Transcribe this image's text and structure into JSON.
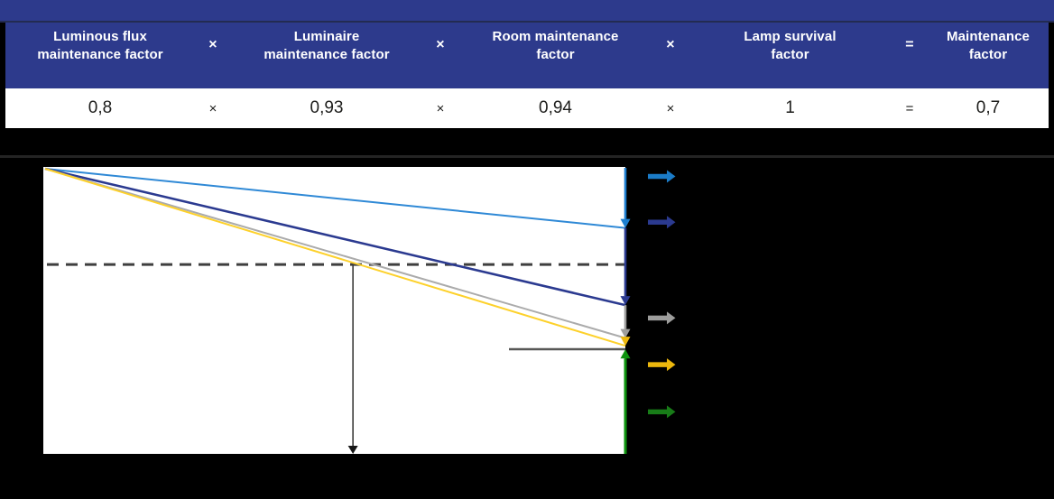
{
  "theme": {
    "page_bg": "#000000",
    "header_bg": "#2d3a8c",
    "header_text": "#ffffff",
    "value_text": "#1d1d1b",
    "section_divider": "#242424"
  },
  "table": {
    "cells": [
      {
        "type": "factor",
        "header": "Luminous flux\nmaintenance factor",
        "value": "0,8"
      },
      {
        "type": "operator",
        "header": "×",
        "value": "×"
      },
      {
        "type": "factor",
        "header": "Luminaire\nmaintenance factor",
        "value": "0,93"
      },
      {
        "type": "operator",
        "header": "×",
        "value": "×"
      },
      {
        "type": "factor",
        "header": "Room maintenance\nfactor",
        "value": "0,94"
      },
      {
        "type": "operator",
        "header": "×",
        "value": "×"
      },
      {
        "type": "factor",
        "header": "Lamp survival\nfactor",
        "value": "1"
      },
      {
        "type": "operator",
        "header": "=",
        "value": "="
      },
      {
        "type": "factor",
        "header": "Maintenance\nfactor",
        "value": "0,7"
      }
    ]
  },
  "chart_data": {
    "type": "line",
    "title": "",
    "xlabel": "",
    "ylabel": "",
    "x_range": [
      0,
      1
    ],
    "y_range": [
      0,
      1
    ],
    "grid": false,
    "plot_bg": "#ffffff",
    "series": [
      {
        "name": "luminous-flux-depreciation",
        "color": "#2f89d6",
        "width": 2,
        "x": [
          0,
          1
        ],
        "y": [
          1.0,
          0.79
        ]
      },
      {
        "name": "with-luminaire-depreciation",
        "color": "#2b3a90",
        "width": 2.6,
        "x": [
          0,
          1
        ],
        "y": [
          1.0,
          0.52
        ]
      },
      {
        "name": "with-room-surface-depreciation",
        "color": "#ababab",
        "width": 2,
        "x": [
          0,
          1
        ],
        "y": [
          1.0,
          0.405
        ]
      },
      {
        "name": "resulting-light-output",
        "color": "#fdd12b",
        "width": 2,
        "x": [
          0,
          1
        ],
        "y": [
          1.0,
          0.378
        ]
      }
    ],
    "annotations": {
      "dashed_level": {
        "y": 0.662,
        "color": "#3f3f3f"
      },
      "maintenance_time_marker": {
        "x": 0.532,
        "from_y": 0.662,
        "color": "#3c3c3b",
        "head_color": "#161616"
      },
      "residual_level_line": {
        "y": 0.366,
        "x_from": 0.8,
        "x_to": 1.0,
        "color": "#575756"
      },
      "right_cascade": [
        {
          "name": "luminous-flux-loss-segment",
          "color": "#1e7fd0",
          "from": 1.0,
          "to": 0.79,
          "direction": "down"
        },
        {
          "name": "luminaire-loss-segment",
          "color": "#2b3a90",
          "from": 0.79,
          "to": 0.52,
          "direction": "down"
        },
        {
          "name": "room-surface-loss-segment",
          "color": "#9d9d9c",
          "from": 0.52,
          "to": 0.405,
          "direction": "down"
        },
        {
          "name": "lamp-survival-segment",
          "color": "#ecb70d",
          "from": 0.405,
          "to": 0.378,
          "direction": "down"
        },
        {
          "name": "remaining-output-segment",
          "color": "#0e930e",
          "from": 0.0,
          "to": 0.365,
          "direction": "up"
        }
      ],
      "legend_arrows": [
        {
          "name": "luminous-flux-loss-arrow",
          "color": "#1b7cc8",
          "level": 0.97
        },
        {
          "name": "luminaire-loss-arrow",
          "color": "#2b3a90",
          "level": 0.81
        },
        {
          "name": "room-surface-loss-arrow",
          "color": "#9d9d9c",
          "level": 0.475
        },
        {
          "name": "lamp-survival-loss-arrow",
          "color": "#ecb70d",
          "level": 0.312
        },
        {
          "name": "remaining-output-arrow",
          "color": "#187c18",
          "level": 0.147
        }
      ]
    }
  }
}
